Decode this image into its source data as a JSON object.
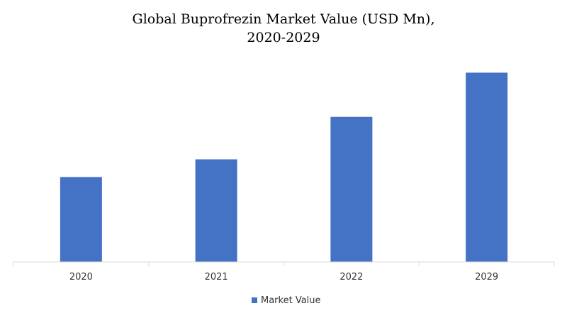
{
  "chart_data": {
    "type": "bar",
    "title_line1": "Global  Buprofrezin  Market Value (USD Mn),",
    "title_line2": "2020-2029",
    "categories": [
      "2020",
      "2021",
      "2022",
      "2029"
    ],
    "series": [
      {
        "name": "Market Value",
        "values": [
          48,
          58,
          82,
          107
        ],
        "color": "#4472c4"
      }
    ],
    "xlabel": "",
    "ylabel": "",
    "ylim": [
      0,
      120
    ],
    "grid": false,
    "y_axis_visible": false,
    "legend_position": "bottom-center"
  }
}
